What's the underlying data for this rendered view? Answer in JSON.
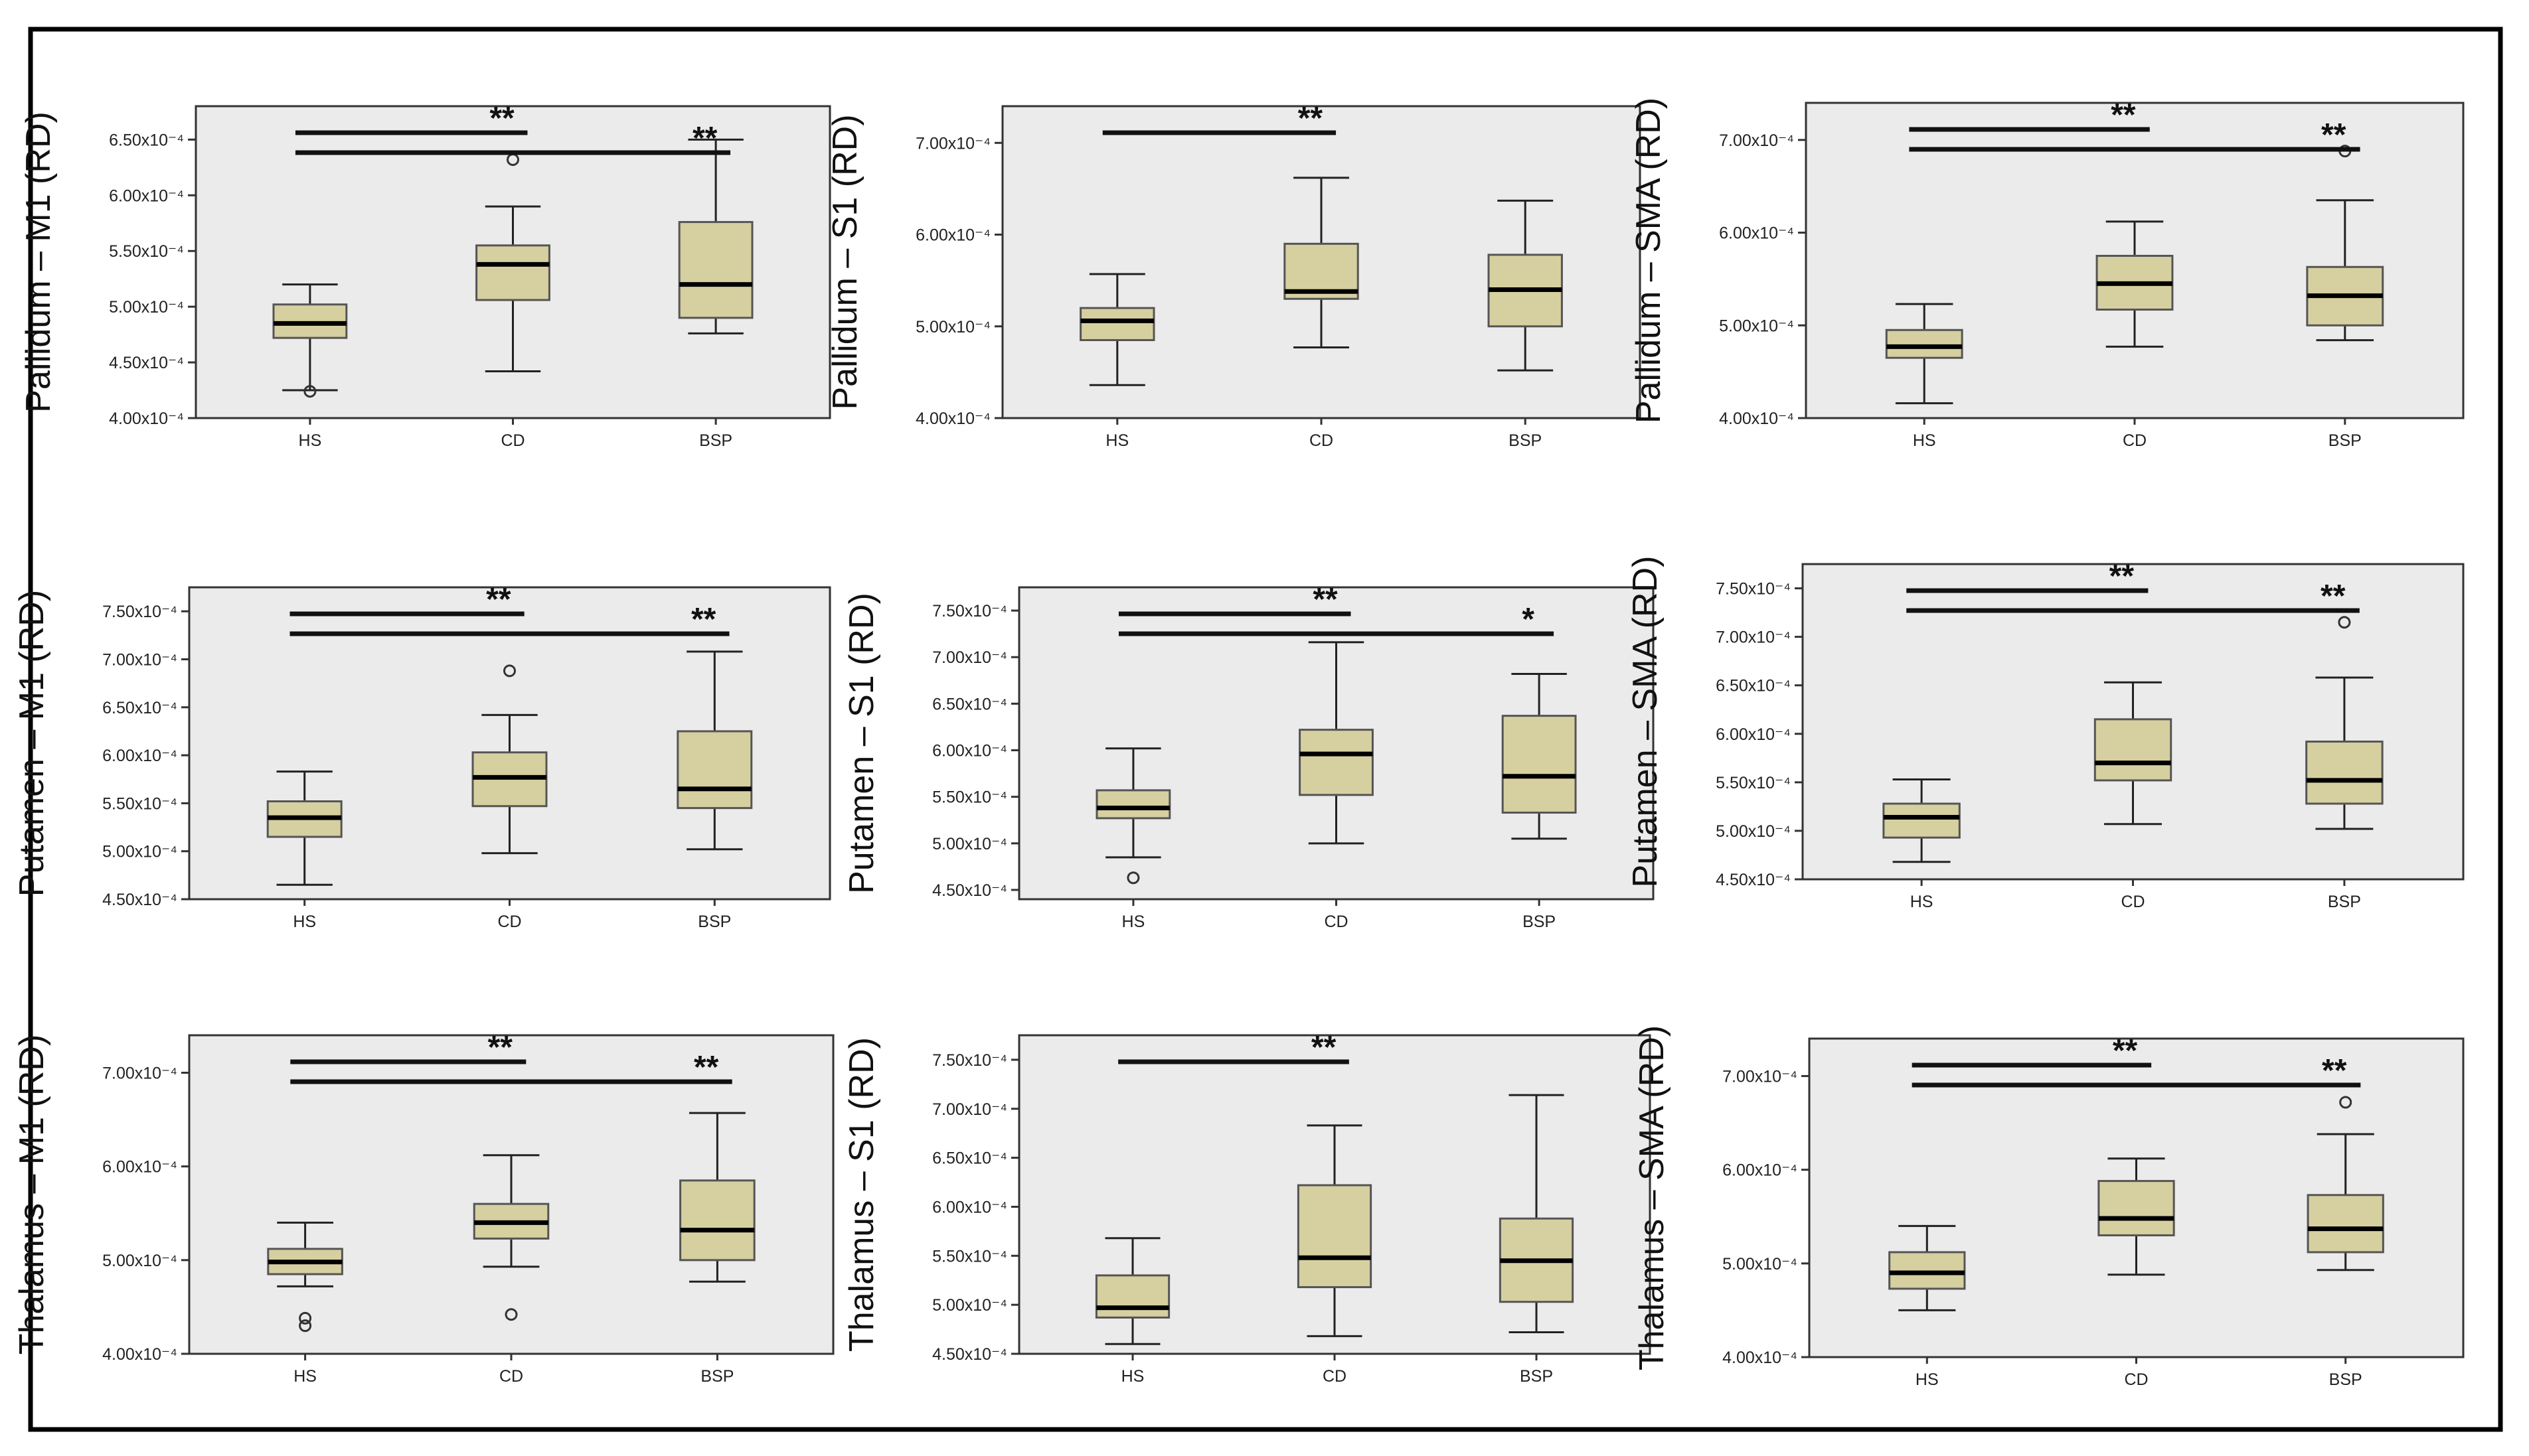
{
  "figure": {
    "frame": true
  },
  "colors": {
    "panel_bg": "#ebebeb",
    "box_fill": "#d6cfa0",
    "line": "#222222",
    "outer_border": "#000000"
  },
  "chart_data": [
    {
      "type": "box",
      "title": "",
      "ylabel": "Pallidum – M1 (RD)",
      "ylim": [
        4.0,
        6.8
      ],
      "yticks": [
        4.0,
        4.5,
        5.0,
        5.5,
        6.0,
        6.5
      ],
      "ytick_labels": [
        "4.00x10⁻⁴",
        "4.50x10⁻⁴",
        "5.00x10⁻⁴",
        "5.50x10⁻⁴",
        "6.00x10⁻⁴",
        "6.50x10⁻⁴"
      ],
      "categories": [
        "HS",
        "CD",
        "BSP"
      ],
      "boxes": [
        {
          "whisker_low": 4.25,
          "q1": 4.72,
          "median": 4.85,
          "q3": 5.02,
          "whisker_high": 5.2,
          "outliers": [
            4.24
          ]
        },
        {
          "whisker_low": 4.42,
          "q1": 5.06,
          "median": 5.38,
          "q3": 5.55,
          "whisker_high": 5.9,
          "outliers": [
            6.32
          ]
        },
        {
          "whisker_low": 4.76,
          "q1": 4.9,
          "median": 5.2,
          "q3": 5.76,
          "whisker_high": 6.5,
          "outliers": []
        }
      ],
      "significance": [
        {
          "from": 0,
          "to": 1,
          "label": "**"
        },
        {
          "from": 0,
          "to": 2,
          "label": "**"
        }
      ]
    },
    {
      "type": "box",
      "title": "",
      "ylabel": "Pallidum – S1 (RD)",
      "ylim": [
        4.0,
        7.4
      ],
      "yticks": [
        4.0,
        5.0,
        6.0,
        7.0
      ],
      "ytick_labels": [
        "4.00x10⁻⁴",
        "5.00x10⁻⁴",
        "6.00x10⁻⁴",
        "7.00x10⁻⁴"
      ],
      "categories": [
        "HS",
        "CD",
        "BSP"
      ],
      "boxes": [
        {
          "whisker_low": 4.36,
          "q1": 4.85,
          "median": 5.06,
          "q3": 5.2,
          "whisker_high": 5.57,
          "outliers": []
        },
        {
          "whisker_low": 4.77,
          "q1": 5.3,
          "median": 5.38,
          "q3": 5.9,
          "whisker_high": 6.62,
          "outliers": []
        },
        {
          "whisker_low": 4.52,
          "q1": 5.0,
          "median": 5.4,
          "q3": 5.78,
          "whisker_high": 6.37,
          "outliers": []
        }
      ],
      "significance": [
        {
          "from": 0,
          "to": 1,
          "label": "**"
        }
      ]
    },
    {
      "type": "box",
      "title": "",
      "ylabel": "Pallidum – SMA (RD)",
      "ylim": [
        4.0,
        7.4
      ],
      "yticks": [
        4.0,
        5.0,
        6.0,
        7.0
      ],
      "ytick_labels": [
        "4.00x10⁻⁴",
        "5.00x10⁻⁴",
        "6.00x10⁻⁴",
        "7.00x10⁻⁴"
      ],
      "categories": [
        "HS",
        "CD",
        "BSP"
      ],
      "boxes": [
        {
          "whisker_low": 4.16,
          "q1": 4.65,
          "median": 4.77,
          "q3": 4.95,
          "whisker_high": 5.23,
          "outliers": []
        },
        {
          "whisker_low": 4.77,
          "q1": 5.17,
          "median": 5.45,
          "q3": 5.75,
          "whisker_high": 6.12,
          "outliers": []
        },
        {
          "whisker_low": 4.84,
          "q1": 5.0,
          "median": 5.32,
          "q3": 5.63,
          "whisker_high": 6.35,
          "outliers": [
            6.88
          ]
        }
      ],
      "significance": [
        {
          "from": 0,
          "to": 1,
          "label": "**"
        },
        {
          "from": 0,
          "to": 2,
          "label": "**"
        }
      ]
    },
    {
      "type": "box",
      "title": "",
      "ylabel": "Putamen – M1 (RD)",
      "ylim": [
        4.5,
        7.75
      ],
      "yticks": [
        4.5,
        5.0,
        5.5,
        6.0,
        6.5,
        7.0,
        7.5
      ],
      "ytick_labels": [
        "4.50x10⁻⁴",
        "5.00x10⁻⁴",
        "5.50x10⁻⁴",
        "6.00x10⁻⁴",
        "6.50x10⁻⁴",
        "7.00x10⁻⁴",
        "7.50x10⁻⁴"
      ],
      "categories": [
        "HS",
        "CD",
        "BSP"
      ],
      "boxes": [
        {
          "whisker_low": 4.65,
          "q1": 5.15,
          "median": 5.35,
          "q3": 5.52,
          "whisker_high": 5.83,
          "outliers": []
        },
        {
          "whisker_low": 4.98,
          "q1": 5.47,
          "median": 5.77,
          "q3": 6.03,
          "whisker_high": 6.42,
          "outliers": [
            6.88
          ]
        },
        {
          "whisker_low": 5.02,
          "q1": 5.45,
          "median": 5.65,
          "q3": 6.25,
          "whisker_high": 7.08,
          "outliers": []
        }
      ],
      "significance": [
        {
          "from": 0,
          "to": 1,
          "label": "**"
        },
        {
          "from": 0,
          "to": 2,
          "label": "**"
        }
      ]
    },
    {
      "type": "box",
      "title": "",
      "ylabel": "Putamen – S1 (RD)",
      "ylim": [
        4.4,
        7.75
      ],
      "yticks": [
        4.5,
        5.0,
        5.5,
        6.0,
        6.5,
        7.0,
        7.5
      ],
      "ytick_labels": [
        "4.50x10⁻⁴",
        "5.00x10⁻⁴",
        "5.50x10⁻⁴",
        "6.00x10⁻⁴",
        "6.50x10⁻⁴",
        "7.00x10⁻⁴",
        "7.50x10⁻⁴"
      ],
      "categories": [
        "HS",
        "CD",
        "BSP"
      ],
      "boxes": [
        {
          "whisker_low": 4.85,
          "q1": 5.27,
          "median": 5.38,
          "q3": 5.57,
          "whisker_high": 6.02,
          "outliers": [
            4.63
          ]
        },
        {
          "whisker_low": 5.0,
          "q1": 5.52,
          "median": 5.96,
          "q3": 6.22,
          "whisker_high": 7.16,
          "outliers": []
        },
        {
          "whisker_low": 5.05,
          "q1": 5.33,
          "median": 5.72,
          "q3": 6.37,
          "whisker_high": 6.82,
          "outliers": []
        }
      ],
      "significance": [
        {
          "from": 0,
          "to": 1,
          "label": "**"
        },
        {
          "from": 0,
          "to": 2,
          "label": "*"
        }
      ]
    },
    {
      "type": "box",
      "title": "",
      "ylabel": "Putamen – SMA (RD)",
      "ylim": [
        4.5,
        7.75
      ],
      "yticks": [
        4.5,
        5.0,
        5.5,
        6.0,
        6.5,
        7.0,
        7.5
      ],
      "ytick_labels": [
        "4.50x10⁻⁴",
        "5.00x10⁻⁴",
        "5.50x10⁻⁴",
        "6.00x10⁻⁴",
        "6.50x10⁻⁴",
        "7.00x10⁻⁴",
        "7.50x10⁻⁴"
      ],
      "categories": [
        "HS",
        "CD",
        "BSP"
      ],
      "boxes": [
        {
          "whisker_low": 4.68,
          "q1": 4.93,
          "median": 5.14,
          "q3": 5.28,
          "whisker_high": 5.53,
          "outliers": []
        },
        {
          "whisker_low": 5.07,
          "q1": 5.52,
          "median": 5.7,
          "q3": 6.15,
          "whisker_high": 6.53,
          "outliers": []
        },
        {
          "whisker_low": 5.02,
          "q1": 5.28,
          "median": 5.52,
          "q3": 5.92,
          "whisker_high": 6.58,
          "outliers": [
            7.15
          ]
        }
      ],
      "significance": [
        {
          "from": 0,
          "to": 1,
          "label": "**"
        },
        {
          "from": 0,
          "to": 2,
          "label": "**"
        }
      ]
    },
    {
      "type": "box",
      "title": "",
      "ylabel": "Thalamus – M1 (RD)",
      "ylim": [
        4.0,
        7.4
      ],
      "yticks": [
        4.0,
        5.0,
        6.0,
        7.0
      ],
      "ytick_labels": [
        "4.00x10⁻⁴",
        "5.00x10⁻⁴",
        "6.00x10⁻⁴",
        "7.00x10⁻⁴"
      ],
      "categories": [
        "HS",
        "CD",
        "BSP"
      ],
      "boxes": [
        {
          "whisker_low": 4.72,
          "q1": 4.85,
          "median": 4.98,
          "q3": 5.12,
          "whisker_high": 5.4,
          "outliers": [
            4.38,
            4.3
          ]
        },
        {
          "whisker_low": 4.93,
          "q1": 5.23,
          "median": 5.4,
          "q3": 5.6,
          "whisker_high": 6.12,
          "outliers": [
            4.42
          ]
        },
        {
          "whisker_low": 4.77,
          "q1": 5.0,
          "median": 5.32,
          "q3": 5.85,
          "whisker_high": 6.57,
          "outliers": []
        }
      ],
      "significance": [
        {
          "from": 0,
          "to": 1,
          "label": "**"
        },
        {
          "from": 0,
          "to": 2,
          "label": "**"
        }
      ]
    },
    {
      "type": "box",
      "title": "",
      "ylabel": "Thalamus – S1 (RD)",
      "ylim": [
        4.5,
        7.75
      ],
      "yticks": [
        4.5,
        5.0,
        5.5,
        6.0,
        6.5,
        7.0,
        7.5
      ],
      "ytick_labels": [
        "4.50x10⁻⁴",
        "5.00x10⁻⁴",
        "5.50x10⁻⁴",
        "6.00x10⁻⁴",
        "6.50x10⁻⁴",
        "7.00x10⁻⁴",
        "7.50x10⁻⁴"
      ],
      "categories": [
        "HS",
        "CD",
        "BSP"
      ],
      "boxes": [
        {
          "whisker_low": 4.6,
          "q1": 4.87,
          "median": 4.97,
          "q3": 5.3,
          "whisker_high": 5.68,
          "outliers": []
        },
        {
          "whisker_low": 4.68,
          "q1": 5.18,
          "median": 5.48,
          "q3": 6.22,
          "whisker_high": 6.83,
          "outliers": []
        },
        {
          "whisker_low": 4.72,
          "q1": 5.03,
          "median": 5.45,
          "q3": 5.88,
          "whisker_high": 7.14,
          "outliers": []
        }
      ],
      "significance": [
        {
          "from": 0,
          "to": 1,
          "label": "**"
        }
      ]
    },
    {
      "type": "box",
      "title": "",
      "ylabel": "Thalamus – SMA (RD)",
      "ylim": [
        4.0,
        7.4
      ],
      "yticks": [
        4.0,
        5.0,
        6.0,
        7.0
      ],
      "ytick_labels": [
        "4.00x10⁻⁴",
        "5.00x10⁻⁴",
        "6.00x10⁻⁴",
        "7.00x10⁻⁴"
      ],
      "categories": [
        "HS",
        "CD",
        "BSP"
      ],
      "boxes": [
        {
          "whisker_low": 4.5,
          "q1": 4.73,
          "median": 4.9,
          "q3": 5.12,
          "whisker_high": 5.4,
          "outliers": []
        },
        {
          "whisker_low": 4.88,
          "q1": 5.3,
          "median": 5.48,
          "q3": 5.88,
          "whisker_high": 6.12,
          "outliers": []
        },
        {
          "whisker_low": 4.93,
          "q1": 5.12,
          "median": 5.37,
          "q3": 5.73,
          "whisker_high": 6.38,
          "outliers": [
            6.72
          ]
        }
      ],
      "significance": [
        {
          "from": 0,
          "to": 1,
          "label": "**"
        },
        {
          "from": 0,
          "to": 2,
          "label": "**"
        }
      ]
    }
  ]
}
